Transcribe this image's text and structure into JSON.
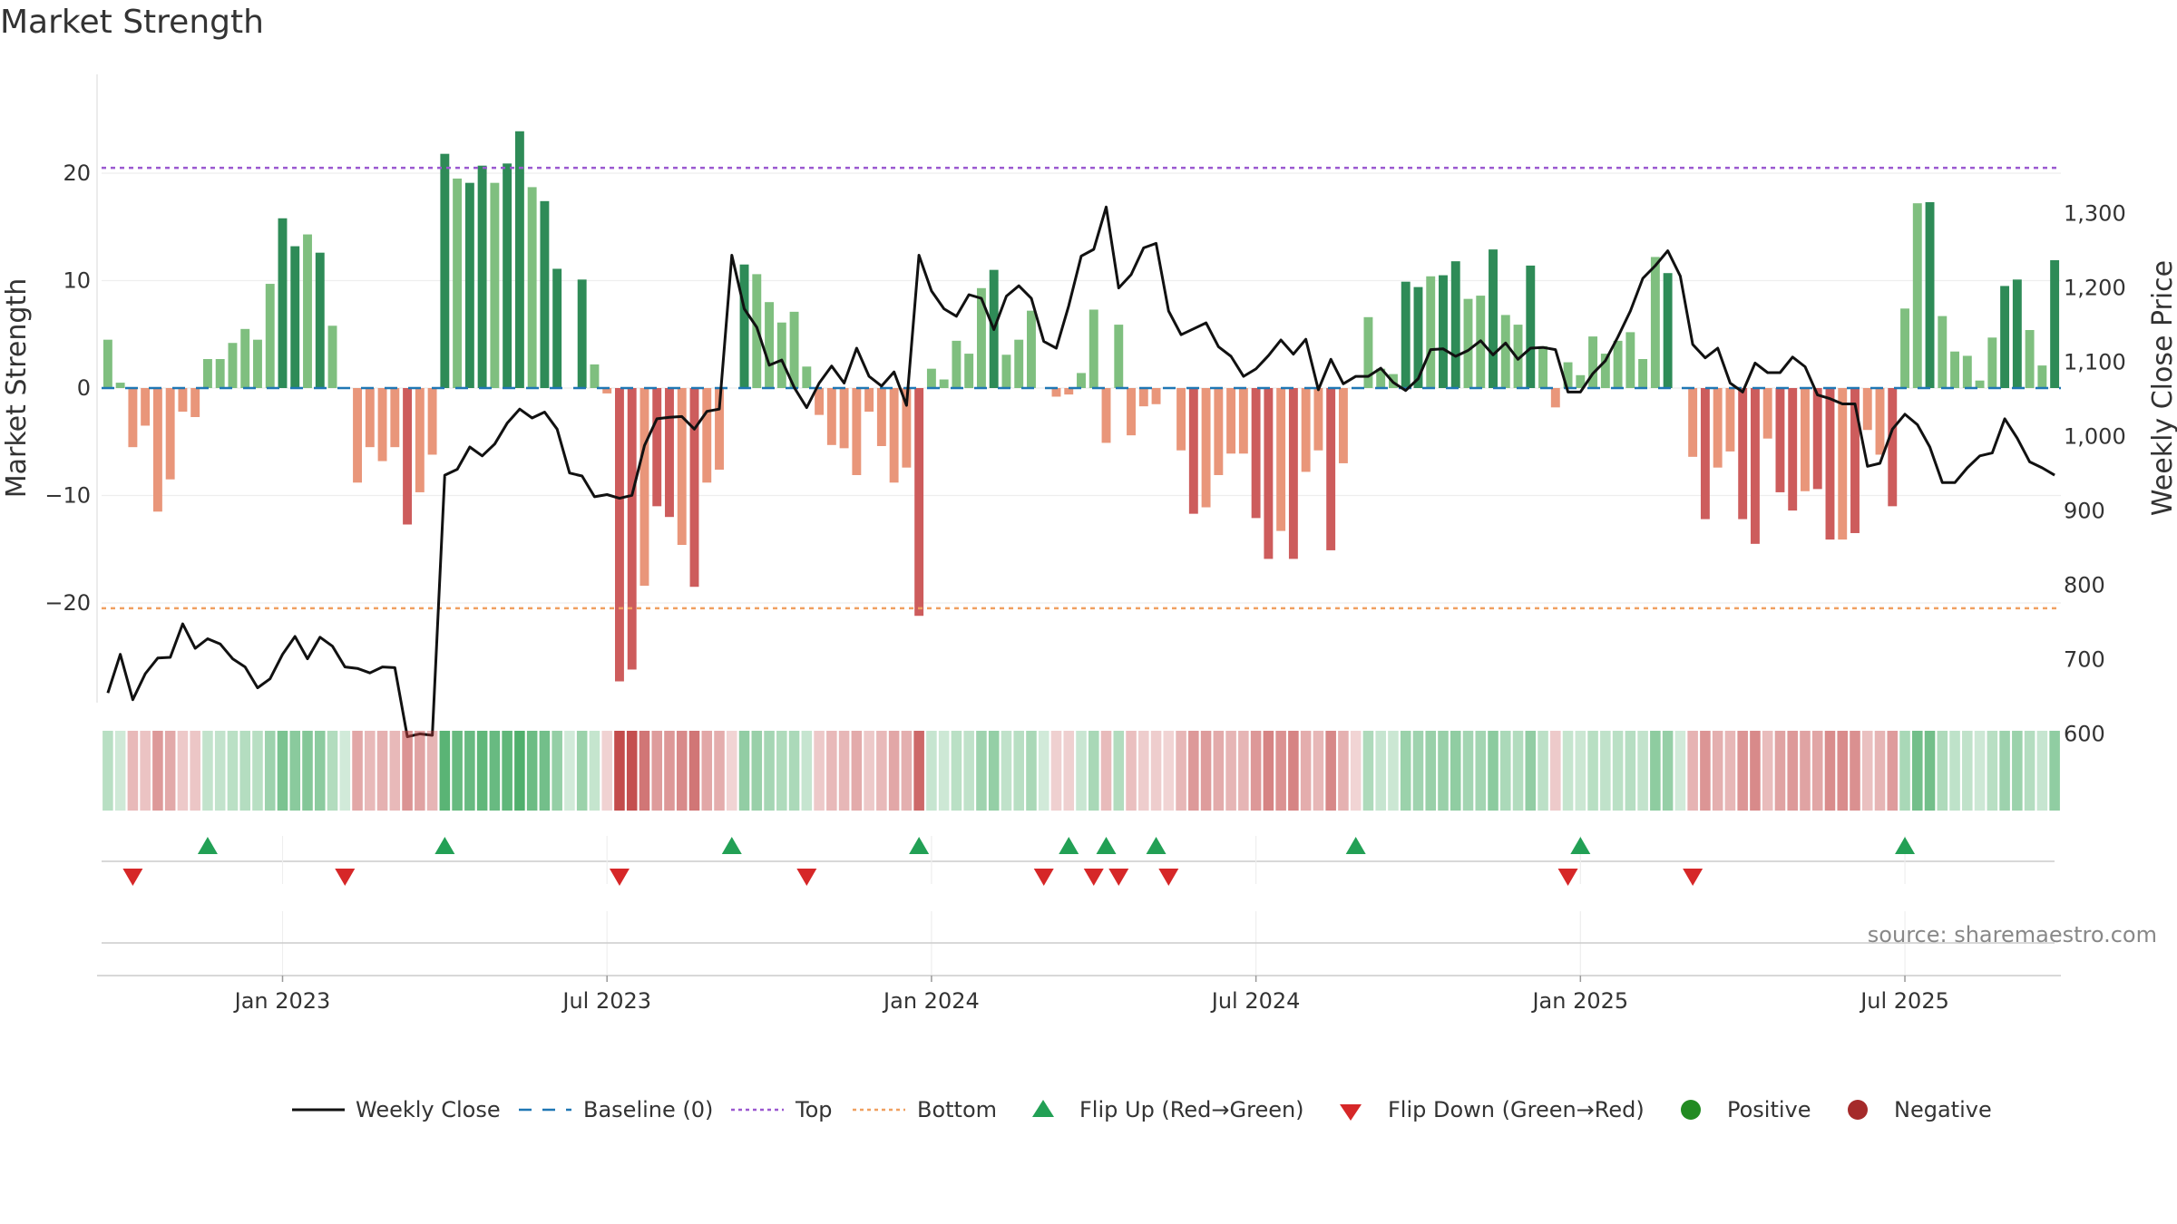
{
  "title": "Market Strength",
  "chart_data": {
    "type": "bar+line",
    "title": "Market Strength",
    "ylabel": "Market Strength",
    "y2label": "Weekly Close Price",
    "ylim": [
      -27,
      29
    ],
    "y2lim": [
      510,
      1360
    ],
    "yticks": [
      20,
      10,
      0,
      -10,
      -20
    ],
    "yticklabels": [
      "20",
      "10",
      "0",
      "−10",
      "−20"
    ],
    "y2ticks": [
      1300,
      1200,
      1100,
      1000,
      900,
      800,
      700,
      600
    ],
    "y2ticklabels": [
      "1,300",
      "1,200",
      "1,100",
      "1,000",
      "900",
      "800",
      "700",
      "600"
    ],
    "top_level": 20.5,
    "bottom_level": -20.5,
    "baseline": 0,
    "x_start": "2022-09-26",
    "x_end": "2025-09-29",
    "bars_per_week": 1,
    "xtick_labels": [
      "Jan 2023",
      "Jul 2023",
      "Jan 2024",
      "Jul 2024",
      "Jan 2025",
      "Jul 2025"
    ],
    "xtick_positions_week": [
      14.5,
      40.5,
      66.5,
      92.5,
      118.5,
      144.5
    ],
    "strength_values": [
      4.5,
      0.5,
      -5.5,
      -3.5,
      -11.5,
      -8.5,
      -2.2,
      -2.7,
      2.7,
      2.7,
      4.2,
      5.5,
      4.5,
      9.7,
      15.8,
      13.2,
      14.3,
      12.6,
      5.8,
      0,
      -8.8,
      -5.5,
      -6.8,
      -5.5,
      -12.7,
      -9.7,
      -6.2,
      21.8,
      19.5,
      19.1,
      20.7,
      19.1,
      20.9,
      23.9,
      18.7,
      17.4,
      11.1,
      0,
      10.1,
      2.2,
      -0.5,
      -27.3,
      -26.2,
      -18.4,
      -11,
      -12,
      -14.6,
      -18.5,
      -8.8,
      -7.6,
      0,
      11.5,
      10.6,
      8,
      6.1,
      7.1,
      2,
      -2.5,
      -5.3,
      -5.6,
      -8.1,
      -2.2,
      -5.4,
      -8.8,
      -7.4,
      -21.2,
      1.8,
      0.8,
      4.4,
      3.2,
      9.3,
      11,
      3.1,
      4.5,
      7.2,
      0,
      -0.8,
      -0.6,
      1.4,
      7.3,
      -5.1,
      5.9,
      -4.4,
      -1.7,
      -1.5,
      0,
      -5.8,
      -11.7,
      -11.1,
      -8.1,
      -6.1,
      -6.1,
      -12.1,
      -15.9,
      -13.3,
      -15.9,
      -7.8,
      -5.8,
      -15.1,
      -7,
      0,
      6.6,
      1.8,
      1.3,
      9.9,
      9.4,
      10.4,
      10.5,
      11.8,
      8.3,
      8.6,
      12.9,
      6.8,
      5.9,
      11.4,
      3.9,
      -1.8,
      2.4,
      1.2,
      4.8,
      3.2,
      4.4,
      5.2,
      2.7,
      12.2,
      10.7,
      0,
      -6.4,
      -12.2,
      -7.4,
      -5.9,
      -12.2,
      -14.5,
      -4.7,
      -9.7,
      -11.4,
      -9.6,
      -9.4,
      -14.1,
      -14.1,
      -13.5,
      -3.9,
      -6.2,
      -11,
      7.4,
      17.2,
      17.3,
      6.7,
      3.4,
      3,
      0.7,
      4.7,
      9.5,
      10.1,
      5.4,
      2.1,
      11.9
    ],
    "weekly_close": [
      655,
      707,
      646,
      681,
      702,
      703,
      748,
      715,
      728,
      721,
      701,
      690,
      662,
      674,
      707,
      731,
      701,
      730,
      718,
      690,
      688,
      682,
      690,
      689,
      596,
      600,
      598,
      948,
      956,
      986,
      974,
      990,
      1018,
      1037,
      1025,
      1033,
      1010,
      951,
      947,
      919,
      922,
      917,
      921,
      988,
      1024,
      1026,
      1027,
      1010,
      1034,
      1037,
      1244,
      1172,
      1147,
      1096,
      1103,
      1066,
      1039,
      1072,
      1095,
      1072,
      1119,
      1081,
      1068,
      1087,
      1042,
      1244,
      1196,
      1172,
      1162,
      1191,
      1186,
      1144,
      1189,
      1203,
      1186,
      1128,
      1119,
      1176,
      1243,
      1252,
      1309,
      1200,
      1218,
      1254,
      1260,
      1169,
      1137,
      1145,
      1153,
      1121,
      1108,
      1081,
      1091,
      1109,
      1130,
      1111,
      1131,
      1063,
      1104,
      1071,
      1081,
      1081,
      1092,
      1073,
      1062,
      1078,
      1117,
      1118,
      1108,
      1116,
      1129,
      1110,
      1126,
      1104,
      1119,
      1120,
      1117,
      1060,
      1060,
      1085,
      1102,
      1134,
      1169,
      1213,
      1230,
      1250,
      1216,
      1124,
      1106,
      1119,
      1072,
      1060,
      1099,
      1086,
      1086,
      1107,
      1094,
      1056,
      1051,
      1044,
      1044,
      960,
      964,
      1010,
      1030,
      1016,
      986,
      938,
      938,
      958,
      974,
      978,
      1024,
      998,
      966,
      958,
      948
    ],
    "flip_up_weeks": [
      8,
      27,
      50,
      65,
      77,
      80,
      84,
      100,
      118,
      144
    ],
    "flip_down_weeks": [
      2,
      19,
      41,
      56,
      75,
      79,
      81,
      85,
      117,
      127
    ],
    "legend_position": "bottom-center",
    "grid": true
  },
  "legend": [
    {
      "label": "Weekly Close",
      "icon": "line-icon",
      "color": "#111111"
    },
    {
      "label": "Baseline (0)",
      "icon": "dashed-line-icon",
      "color": "#1f77b4"
    },
    {
      "label": "Top",
      "icon": "dotted-line-icon",
      "color": "#9b59d0"
    },
    {
      "label": "Bottom",
      "icon": "dotted-line-icon",
      "color": "#f0a060"
    },
    {
      "label": "Flip Up (Red→Green)",
      "icon": "triangle-up-icon",
      "color": "#22a055"
    },
    {
      "label": "Flip Down (Green→Red)",
      "icon": "triangle-down-icon",
      "color": "#d62728"
    },
    {
      "label": "Positive",
      "icon": "circle-icon",
      "color": "#228b22"
    },
    {
      "label": "Negative",
      "icon": "circle-icon",
      "color": "#a52a2a"
    }
  ],
  "colors": {
    "pos_dark": "#2e8b57",
    "pos_light": "#7fbf7f",
    "neg_dark": "#cd5c5c",
    "neg_light": "#e9967a",
    "line": "#111111",
    "baseline": "#1f77b4",
    "top": "#9b59d0",
    "bottom": "#f0a060",
    "flip_up": "#22a055",
    "flip_down": "#d62728"
  },
  "source": "source: sharemaestro.com"
}
